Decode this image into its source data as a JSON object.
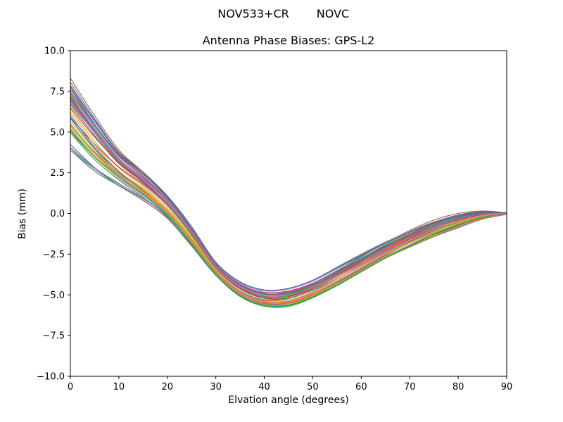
{
  "chart_data": {
    "type": "line",
    "suptitle_left": "NOV533+CR",
    "suptitle_right": "NOVC",
    "title": "Antenna Phase Biases: GPS-L2",
    "xlabel": "Elvation angle (degrees)",
    "ylabel": "Bias (mm)",
    "xlim": [
      0,
      90
    ],
    "ylim": [
      -10,
      10
    ],
    "xtick_values": [
      0,
      10,
      20,
      30,
      40,
      50,
      60,
      70,
      80,
      90
    ],
    "xtick_labels": [
      "0",
      "10",
      "20",
      "30",
      "40",
      "50",
      "60",
      "70",
      "80",
      "90"
    ],
    "ytick_values": [
      10,
      7.5,
      5,
      2.5,
      0,
      -2.5,
      -5,
      -7.5,
      -10
    ],
    "ytick_labels": [
      "10.0",
      "7.5",
      "5.0",
      "2.5",
      "0.0",
      "−2.5",
      "−5.0",
      "−7.5",
      "−10.0"
    ],
    "grid": false,
    "legend": "none",
    "description": "Ensemble of ~48 overlapping antenna phase bias curves vs elevation angle; curves start between 3.9 and 8.3 mm at 0°, dip to a minimum between −4.6 and −5.7 mm near 40–45°, and converge to 0.0 mm at 90°.",
    "x": [
      0,
      5,
      10,
      15,
      20,
      25,
      30,
      35,
      40,
      45,
      50,
      55,
      60,
      65,
      70,
      75,
      80,
      85,
      90
    ],
    "envelope": {
      "upper": [
        8.3,
        6.0,
        3.9,
        2.6,
        1.1,
        -0.8,
        -3.0,
        -4.2,
        -4.7,
        -4.6,
        -4.1,
        -3.3,
        -2.5,
        -1.7,
        -1.0,
        -0.4,
        0.0,
        0.15,
        0.05
      ],
      "lower": [
        3.9,
        2.6,
        1.7,
        0.8,
        -0.3,
        -2.0,
        -3.8,
        -5.1,
        -5.7,
        -5.7,
        -5.2,
        -4.5,
        -3.7,
        -2.9,
        -2.2,
        -1.5,
        -0.9,
        -0.35,
        -0.05
      ]
    },
    "n_lines": 48,
    "line_width": 1.1,
    "palette": [
      "#1f77b4",
      "#ff7f0e",
      "#2ca02c",
      "#d62728",
      "#9467bd",
      "#8c564b",
      "#e377c2",
      "#7f7f7f",
      "#bcbd22",
      "#17becf"
    ],
    "axes_color": "#000000",
    "background_color": "#ffffff"
  }
}
